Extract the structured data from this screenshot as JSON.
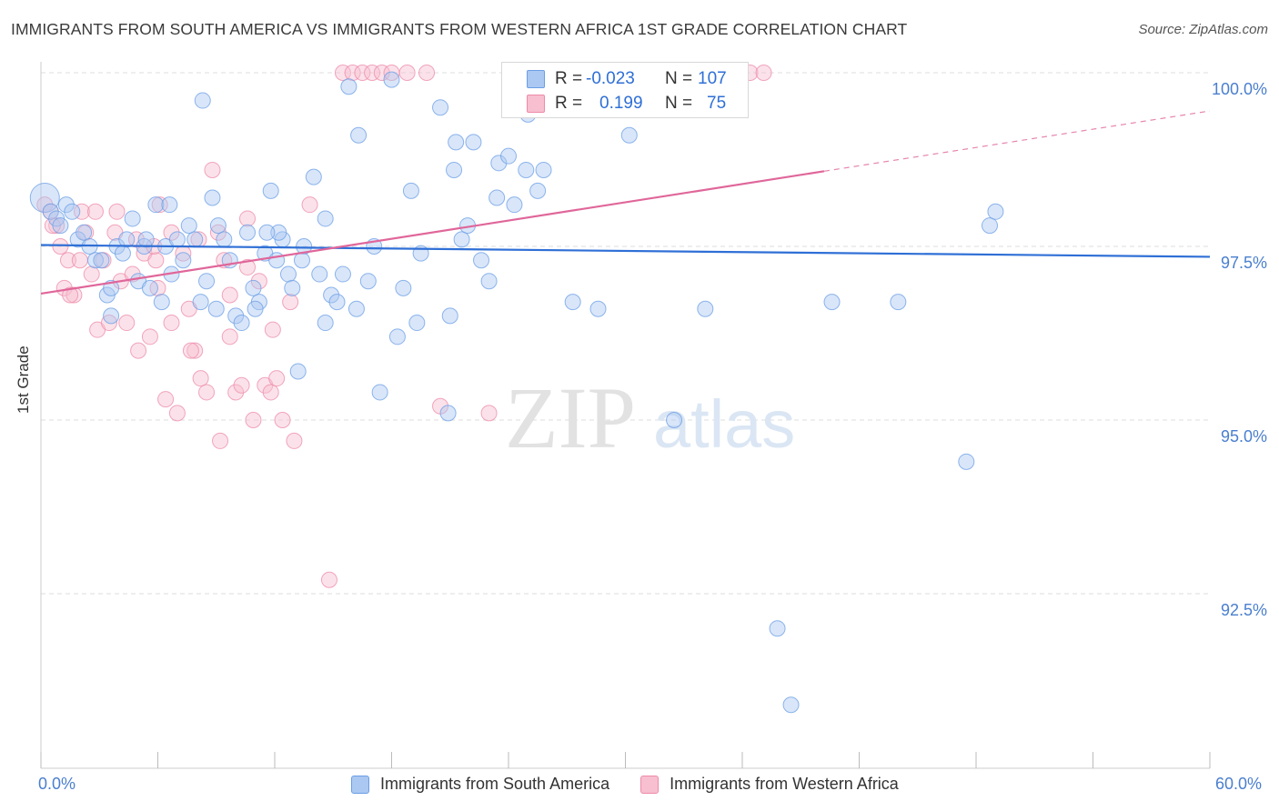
{
  "title": "IMMIGRANTS FROM SOUTH AMERICA VS IMMIGRANTS FROM WESTERN AFRICA 1ST GRADE CORRELATION CHART",
  "source": "Source: ZipAtlas.com",
  "watermark": {
    "zip": "ZIP",
    "atlas": "atlas"
  },
  "colors": {
    "blue": "#6a9ee6",
    "blue_fill": "#aac8f2",
    "blue_line": "#2f6fd6",
    "pink": "#ee8aa8",
    "pink_fill": "#f7bfd0",
    "pink_line": "#e0669a",
    "tick_text": "#4a7fcf"
  },
  "stats": {
    "series1": {
      "r_label": "R =",
      "r_value": "-0.023",
      "n_label": "N =",
      "n_value": "107"
    },
    "series2": {
      "r_label": "R =",
      "r_value": "0.199",
      "n_label": "N =",
      "n_value": "75"
    }
  },
  "chart_data": {
    "type": "scatter",
    "title": "IMMIGRANTS FROM SOUTH AMERICA VS IMMIGRANTS FROM WESTERN AFRICA 1ST GRADE CORRELATION CHART",
    "xlabel": "",
    "ylabel": "1st Grade",
    "xlim": [
      0,
      60
    ],
    "ylim": [
      90.5,
      100.35
    ],
    "x_tick_labels": [
      "0.0%",
      "60.0%"
    ],
    "y_ticks": [
      92.5,
      95.0,
      97.5,
      100.0
    ],
    "y_tick_labels": [
      "92.5%",
      "95.0%",
      "97.5%",
      "100.0%"
    ],
    "legend_position": "bottom-center",
    "series": [
      {
        "name": "Immigrants from South America",
        "color": "blue",
        "trend": {
          "x0": 0,
          "y0": 97.52,
          "x1": 60,
          "y1": 97.35,
          "dashed_from": null
        },
        "points": [
          [
            0.2,
            98.2
          ],
          [
            0.5,
            98.0
          ],
          [
            0.8,
            97.9
          ],
          [
            1.0,
            97.8
          ],
          [
            1.3,
            98.1
          ],
          [
            1.6,
            98.0
          ],
          [
            1.9,
            97.6
          ],
          [
            2.2,
            97.7
          ],
          [
            2.5,
            97.5
          ],
          [
            2.8,
            97.3
          ],
          [
            3.1,
            97.3
          ],
          [
            3.4,
            96.8
          ],
          [
            3.6,
            96.5
          ],
          [
            3.9,
            97.5
          ],
          [
            4.2,
            97.4
          ],
          [
            4.4,
            97.6
          ],
          [
            4.7,
            97.9
          ],
          [
            5.0,
            97.0
          ],
          [
            5.3,
            97.5
          ],
          [
            5.6,
            96.9
          ],
          [
            5.9,
            98.1
          ],
          [
            6.2,
            96.7
          ],
          [
            6.4,
            97.5
          ],
          [
            6.7,
            97.1
          ],
          [
            7.0,
            97.6
          ],
          [
            7.3,
            97.3
          ],
          [
            7.6,
            97.8
          ],
          [
            7.9,
            97.6
          ],
          [
            8.2,
            96.7
          ],
          [
            8.5,
            97.0
          ],
          [
            8.8,
            98.2
          ],
          [
            9.1,
            97.8
          ],
          [
            9.4,
            97.6
          ],
          [
            9.7,
            97.3
          ],
          [
            10.0,
            96.5
          ],
          [
            10.3,
            96.4
          ],
          [
            10.6,
            97.7
          ],
          [
            10.9,
            96.9
          ],
          [
            11.2,
            96.7
          ],
          [
            11.5,
            97.4
          ],
          [
            11.8,
            98.3
          ],
          [
            12.1,
            97.3
          ],
          [
            12.4,
            97.6
          ],
          [
            12.7,
            97.1
          ],
          [
            12.9,
            96.9
          ],
          [
            13.2,
            95.7
          ],
          [
            13.5,
            97.5
          ],
          [
            14.0,
            98.5
          ],
          [
            14.3,
            97.1
          ],
          [
            14.6,
            96.4
          ],
          [
            14.9,
            96.8
          ],
          [
            15.2,
            96.7
          ],
          [
            15.5,
            97.1
          ],
          [
            15.8,
            99.8
          ],
          [
            16.3,
            99.1
          ],
          [
            16.8,
            97.0
          ],
          [
            17.1,
            97.5
          ],
          [
            17.4,
            95.4
          ],
          [
            18.3,
            96.2
          ],
          [
            18.6,
            96.9
          ],
          [
            19.0,
            98.3
          ],
          [
            19.5,
            97.4
          ],
          [
            21.0,
            96.5
          ],
          [
            21.3,
            99.0
          ],
          [
            21.6,
            97.6
          ],
          [
            21.9,
            97.8
          ],
          [
            22.2,
            99.0
          ],
          [
            22.6,
            97.3
          ],
          [
            23.5,
            98.7
          ],
          [
            24.0,
            98.8
          ],
          [
            24.3,
            98.1
          ],
          [
            24.9,
            98.6
          ],
          [
            25.5,
            98.3
          ],
          [
            25.8,
            98.6
          ],
          [
            26.4,
            99.7
          ],
          [
            27.3,
            96.7
          ],
          [
            28.6,
            96.6
          ],
          [
            29.0,
            99.5
          ],
          [
            30.2,
            99.1
          ],
          [
            32.5,
            95.0
          ],
          [
            34.1,
            96.6
          ],
          [
            37.8,
            92.0
          ],
          [
            38.5,
            90.9
          ],
          [
            40.6,
            96.7
          ],
          [
            44.0,
            96.7
          ],
          [
            47.5,
            94.4
          ],
          [
            48.7,
            97.8
          ],
          [
            49.0,
            98.0
          ],
          [
            20.9,
            95.1
          ],
          [
            21.2,
            98.6
          ],
          [
            23.4,
            98.2
          ],
          [
            13.4,
            97.3
          ],
          [
            9.0,
            96.6
          ],
          [
            6.6,
            98.1
          ],
          [
            12.2,
            97.7
          ],
          [
            16.2,
            96.6
          ],
          [
            3.6,
            96.9
          ],
          [
            5.4,
            97.6
          ],
          [
            8.3,
            99.6
          ],
          [
            11.0,
            96.6
          ],
          [
            18.0,
            99.9
          ],
          [
            20.5,
            99.5
          ],
          [
            14.6,
            97.9
          ],
          [
            25.0,
            99.4
          ],
          [
            19.3,
            96.4
          ],
          [
            23.0,
            97.0
          ],
          [
            11.6,
            97.7
          ]
        ]
      },
      {
        "name": "Immigrants from Western Africa",
        "color": "pink",
        "trend": {
          "x0": 0,
          "y0": 96.82,
          "x1": 60,
          "y1": 99.45,
          "dashed_from": 40.2
        },
        "points": [
          [
            0.2,
            98.1
          ],
          [
            0.5,
            98.0
          ],
          [
            0.8,
            97.8
          ],
          [
            1.0,
            97.5
          ],
          [
            1.2,
            96.9
          ],
          [
            1.4,
            97.3
          ],
          [
            1.7,
            96.8
          ],
          [
            2.0,
            97.3
          ],
          [
            2.3,
            97.7
          ],
          [
            2.6,
            97.1
          ],
          [
            2.9,
            96.3
          ],
          [
            3.2,
            97.3
          ],
          [
            3.5,
            96.4
          ],
          [
            3.8,
            97.7
          ],
          [
            4.1,
            97.0
          ],
          [
            4.4,
            96.4
          ],
          [
            4.7,
            97.1
          ],
          [
            5.0,
            96.0
          ],
          [
            5.3,
            97.4
          ],
          [
            5.6,
            96.2
          ],
          [
            5.9,
            97.3
          ],
          [
            6.1,
            98.1
          ],
          [
            6.4,
            95.3
          ],
          [
            6.7,
            96.4
          ],
          [
            7.0,
            95.1
          ],
          [
            7.3,
            97.4
          ],
          [
            7.6,
            96.6
          ],
          [
            7.9,
            96.0
          ],
          [
            8.2,
            95.6
          ],
          [
            8.5,
            95.4
          ],
          [
            8.8,
            98.6
          ],
          [
            9.1,
            97.7
          ],
          [
            9.4,
            97.3
          ],
          [
            9.7,
            96.2
          ],
          [
            10.0,
            95.4
          ],
          [
            10.3,
            95.5
          ],
          [
            10.6,
            97.2
          ],
          [
            10.9,
            95.0
          ],
          [
            11.2,
            97.0
          ],
          [
            11.5,
            95.5
          ],
          [
            11.8,
            95.4
          ],
          [
            12.1,
            95.6
          ],
          [
            12.4,
            95.0
          ],
          [
            13.0,
            94.7
          ],
          [
            14.8,
            92.7
          ],
          [
            15.5,
            100.0
          ],
          [
            16.0,
            100.0
          ],
          [
            16.5,
            100.0
          ],
          [
            17.0,
            100.0
          ],
          [
            17.5,
            100.0
          ],
          [
            18.0,
            100.0
          ],
          [
            18.8,
            100.0
          ],
          [
            19.8,
            100.0
          ],
          [
            20.5,
            95.2
          ],
          [
            23.0,
            95.1
          ],
          [
            35.6,
            100.0
          ],
          [
            36.4,
            100.0
          ],
          [
            37.1,
            100.0
          ],
          [
            11.9,
            96.3
          ],
          [
            6.0,
            96.9
          ],
          [
            4.9,
            97.6
          ],
          [
            2.1,
            98.0
          ],
          [
            1.5,
            96.8
          ],
          [
            3.9,
            98.0
          ],
          [
            7.7,
            96.0
          ],
          [
            9.7,
            96.8
          ],
          [
            12.8,
            96.7
          ],
          [
            10.6,
            97.9
          ],
          [
            13.8,
            98.1
          ],
          [
            8.1,
            97.6
          ],
          [
            9.2,
            94.7
          ],
          [
            5.8,
            97.5
          ],
          [
            2.8,
            98.0
          ],
          [
            6.7,
            97.7
          ],
          [
            0.6,
            97.8
          ]
        ]
      }
    ]
  }
}
